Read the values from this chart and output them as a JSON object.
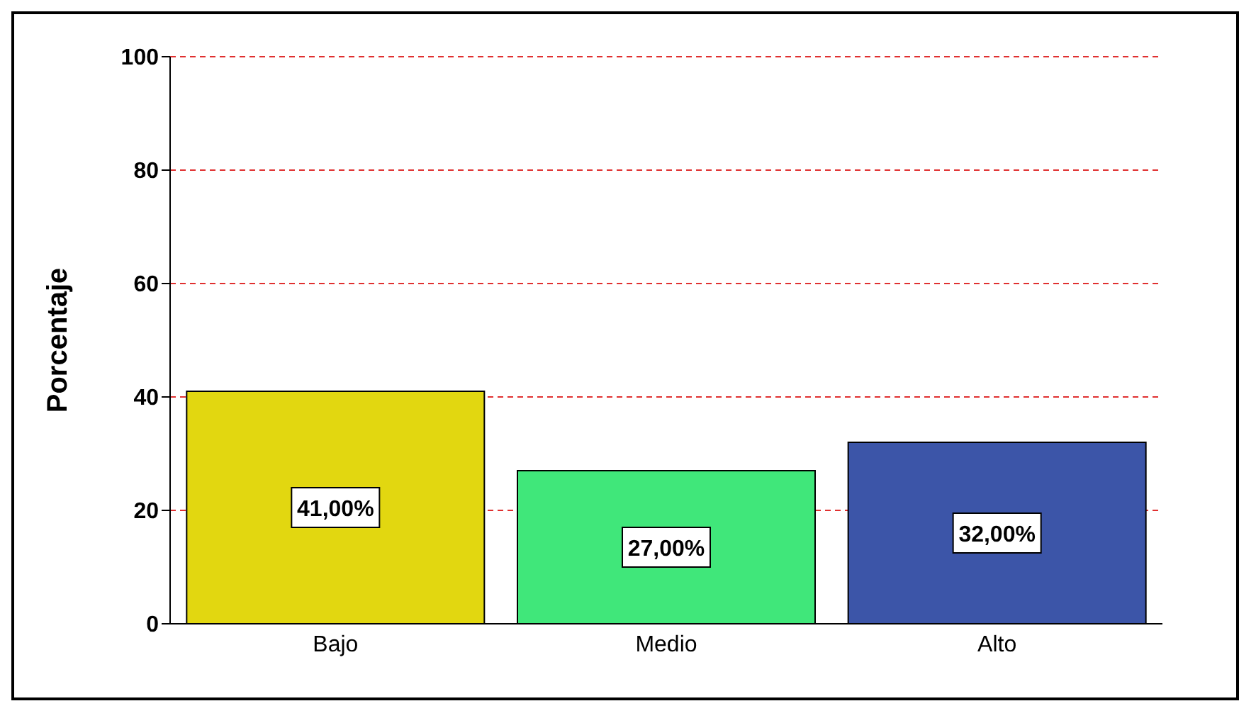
{
  "chart_data": {
    "type": "bar",
    "ylabel": "Porcentaje",
    "categories": [
      "Bajo",
      "Medio",
      "Alto"
    ],
    "values": [
      41,
      27,
      32
    ],
    "colors": [
      "#e2d710",
      "#40e77a",
      "#3c55a8"
    ],
    "value_labels": [
      "41,00%",
      "27,00%",
      "32,00%"
    ],
    "ylim": [
      0,
      100
    ],
    "yticks": [
      0,
      20,
      40,
      60,
      80,
      100
    ],
    "grid": "y"
  }
}
